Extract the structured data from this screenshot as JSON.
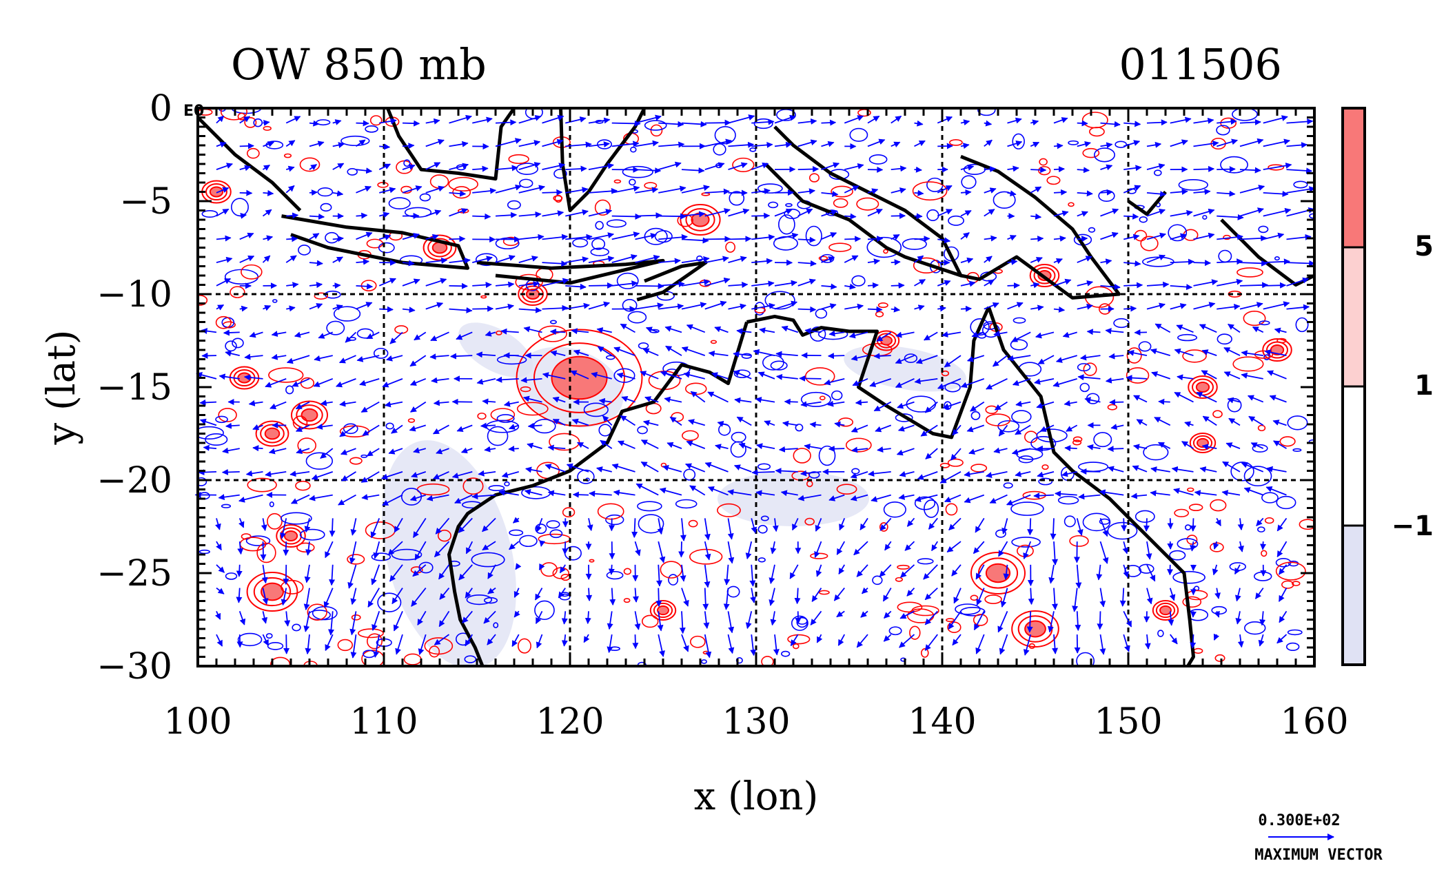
{
  "chart_data": {
    "type": "heatmap",
    "title": "OW 850 mb",
    "title_right": "011506",
    "xlabel": "x (lon)",
    "ylabel": "y (lat)",
    "xlim": [
      100,
      160
    ],
    "ylim": [
      -30,
      0
    ],
    "xticks": [
      "100",
      "110",
      "120",
      "130",
      "140",
      "150",
      "160"
    ],
    "yticks": [
      "0",
      "−5",
      "−10",
      "−15",
      "−20",
      "−25",
      "−30"
    ],
    "xtick_values": [
      100,
      110,
      120,
      130,
      140,
      150,
      160
    ],
    "ytick_values": [
      0,
      -5,
      -10,
      -15,
      -20,
      -25,
      -30
    ],
    "exponent_label": "E0",
    "grid": true,
    "grid_lon": [
      110,
      120,
      130,
      140,
      150
    ],
    "grid_lat": [
      -10,
      -20
    ],
    "colorbar": {
      "levels": [
        "5",
        "1",
        "−1"
      ],
      "level_values": [
        5,
        1,
        -1
      ],
      "colors": [
        "#f87878",
        "#fcd0d0",
        "#ffffff",
        "#e0e2f4"
      ]
    },
    "contour_colors": {
      "positive": "#ff0000",
      "negative": "#0000ff",
      "coast": "#000000"
    },
    "vector_color": "#0000ff",
    "vector_key": {
      "value": "0.300E+02",
      "label": "MAXIMUM VECTOR"
    }
  }
}
